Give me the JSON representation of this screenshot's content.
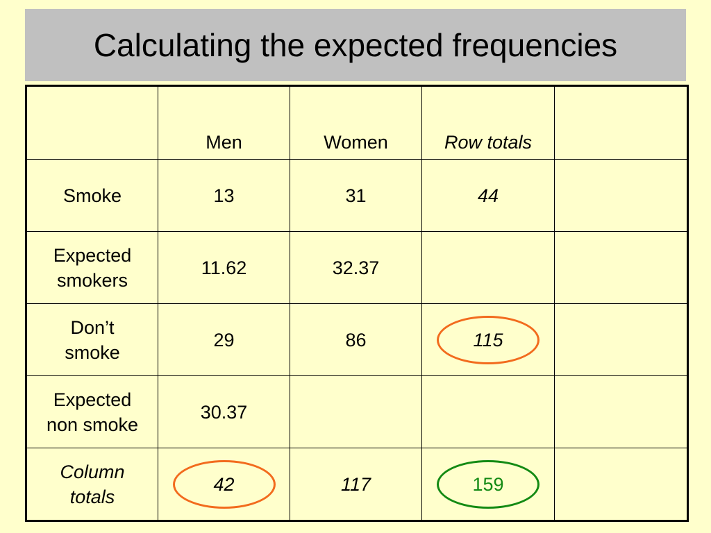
{
  "slide": {
    "title": "Calculating the expected frequencies"
  },
  "table": {
    "header": [
      "",
      "Men",
      "Women",
      "Row totals",
      ""
    ],
    "rows": [
      {
        "label_line1": "Smoke",
        "label_line2": "",
        "men": "13",
        "women": "31",
        "row_total": "44",
        "extra": ""
      },
      {
        "label_line1": "Expected",
        "label_line2": "smokers",
        "men": "11.62",
        "women": "32.37",
        "row_total": "",
        "extra": ""
      },
      {
        "label_line1": "Don’t",
        "label_line2": "smoke",
        "men": "29",
        "women": "86",
        "row_total": "115",
        "extra": ""
      },
      {
        "label_line1": "Expected",
        "label_line2": "non smoke",
        "men": "30.37",
        "women": "",
        "row_total": "",
        "extra": ""
      },
      {
        "label_line1": "Column",
        "label_line2": "totals",
        "men": "42",
        "women": "117",
        "row_total": "159",
        "extra": ""
      }
    ]
  },
  "highlights": {
    "orange": "#f26b1d",
    "green": "#138a13"
  }
}
